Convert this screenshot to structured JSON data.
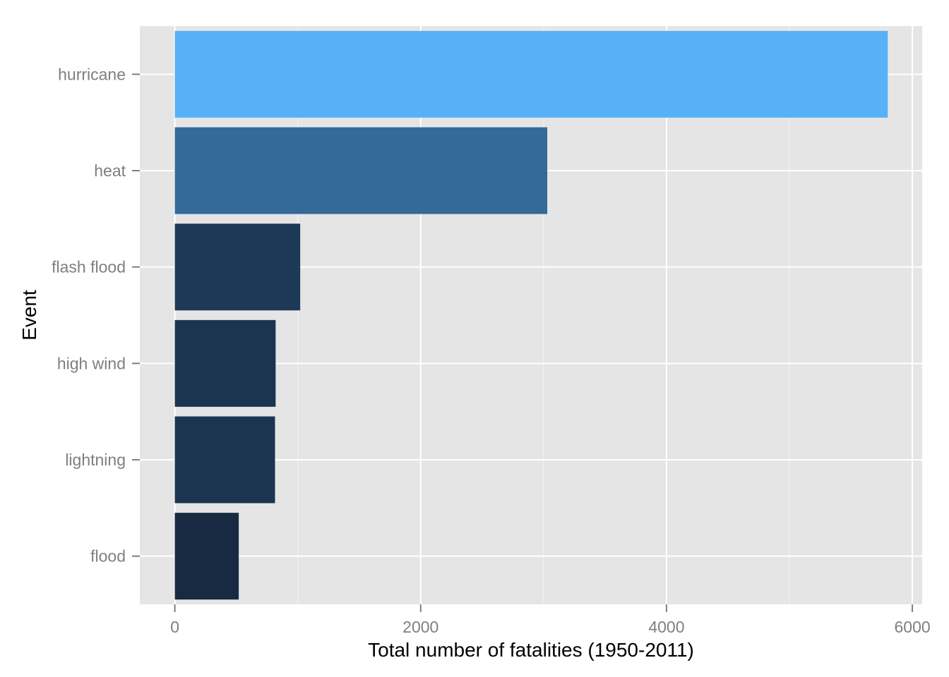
{
  "chart_data": {
    "type": "bar",
    "orientation": "horizontal",
    "categories": [
      "hurricane",
      "heat",
      "flash flood",
      "high wind",
      "lightning",
      "flood"
    ],
    "values": [
      5800,
      3030,
      1020,
      820,
      815,
      520
    ],
    "xlabel": "Total number of fatalities (1950-2011)",
    "ylabel": "Event",
    "xlim": [
      -285,
      6080
    ],
    "xticks": [
      0,
      2000,
      4000,
      6000
    ],
    "xtick_labels": [
      "0",
      "2000",
      "4000",
      "6000"
    ],
    "grid": true,
    "legend": "none",
    "bar_colors": [
      "#56b1f7",
      "#336a98",
      "#1c3956",
      "#1b3450",
      "#1b3450",
      "#172a42"
    ],
    "panel_background": "#e5e5e5",
    "grid_color": "#ffffff"
  }
}
